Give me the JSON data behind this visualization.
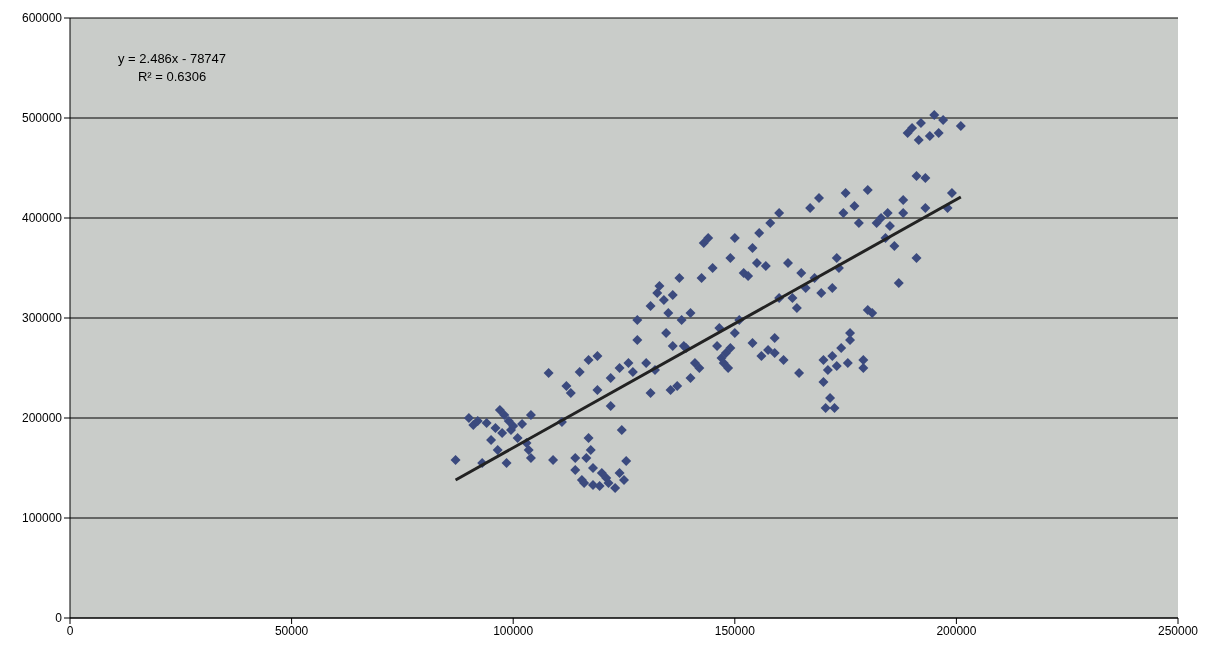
{
  "chart_data": {
    "type": "scatter",
    "grid": "y",
    "xlim": [
      0,
      250000
    ],
    "xticks": [
      0,
      50000,
      100000,
      150000,
      200000,
      250000
    ],
    "ylim": [
      0,
      600000
    ],
    "yticks": [
      0,
      100000,
      200000,
      300000,
      400000,
      500000,
      600000
    ],
    "annotations": [
      "y = 2.486x - 78747",
      "R² = 0.6306"
    ],
    "series": [
      {
        "color": "#3b4a7e",
        "marker": "diamond",
        "x": [
          87000,
          90000,
          91000,
          92000,
          93000,
          94000,
          95000,
          96000,
          96500,
          97000,
          97500,
          98000,
          98500,
          99000,
          99500,
          100000,
          101000,
          102000,
          103000,
          104000,
          104000,
          103500,
          108000,
          109000,
          111000,
          112000,
          113000,
          114000,
          114000,
          115000,
          115500,
          116000,
          116500,
          117000,
          117000,
          117500,
          118000,
          118000,
          119000,
          119000,
          119500,
          120000,
          121000,
          121500,
          122000,
          122000,
          123000,
          124000,
          124000,
          124500,
          125000,
          125500,
          126000,
          127000,
          128000,
          128000,
          130000,
          131000,
          131000,
          132000,
          132500,
          133000,
          134000,
          134500,
          135000,
          135500,
          136000,
          136000,
          137000,
          137500,
          138000,
          138500,
          139000,
          140000,
          140000,
          141000,
          142000,
          142500,
          143000,
          144000,
          145000,
          146000,
          146500,
          147000,
          147500,
          148000,
          148500,
          149000,
          149000,
          150000,
          150000,
          151000,
          152000,
          153000,
          154000,
          154000,
          155000,
          155500,
          156000,
          157000,
          157500,
          158000,
          159000,
          159000,
          160000,
          160000,
          161000,
          162000,
          163000,
          164000,
          164500,
          165000,
          166000,
          167000,
          168000,
          169000,
          169500,
          170000,
          170000,
          170500,
          171000,
          171500,
          172000,
          172000,
          172500,
          173000,
          173000,
          173500,
          174000,
          174500,
          175000,
          175500,
          176000,
          176000,
          177000,
          178000,
          179000,
          179000,
          180000,
          180000,
          181000,
          182000,
          183000,
          184000,
          184500,
          185000,
          186000,
          187000,
          188000,
          188000,
          189000,
          190000,
          191000,
          191000,
          191500,
          192000,
          193000,
          193000,
          194000,
          195000,
          196000,
          197000,
          198000,
          199000,
          201000
        ],
        "values": [
          158000,
          200000,
          193000,
          197000,
          155000,
          195000,
          178000,
          190000,
          168000,
          208000,
          185000,
          203000,
          155000,
          197000,
          188000,
          192000,
          180000,
          194000,
          175000,
          203000,
          160000,
          168000,
          245000,
          158000,
          196000,
          232000,
          225000,
          160000,
          148000,
          246000,
          138000,
          135000,
          160000,
          258000,
          180000,
          168000,
          133000,
          150000,
          262000,
          228000,
          132000,
          145000,
          140000,
          135000,
          212000,
          240000,
          130000,
          145000,
          250000,
          188000,
          138000,
          157000,
          255000,
          246000,
          278000,
          298000,
          255000,
          225000,
          312000,
          248000,
          325000,
          332000,
          318000,
          285000,
          305000,
          228000,
          323000,
          272000,
          232000,
          340000,
          298000,
          272000,
          270000,
          305000,
          240000,
          255000,
          250000,
          340000,
          375000,
          380000,
          350000,
          272000,
          290000,
          260000,
          255000,
          265000,
          250000,
          270000,
          360000,
          285000,
          380000,
          298000,
          345000,
          342000,
          370000,
          275000,
          355000,
          385000,
          262000,
          352000,
          268000,
          395000,
          265000,
          280000,
          320000,
          405000,
          258000,
          355000,
          320000,
          310000,
          245000,
          345000,
          330000,
          410000,
          340000,
          420000,
          325000,
          258000,
          236000,
          210000,
          248000,
          220000,
          262000,
          330000,
          210000,
          252000,
          360000,
          350000,
          270000,
          405000,
          425000,
          255000,
          285000,
          278000,
          412000,
          395000,
          250000,
          258000,
          428000,
          308000,
          305000,
          395000,
          400000,
          380000,
          405000,
          392000,
          372000,
          335000,
          405000,
          418000,
          485000,
          490000,
          360000,
          442000,
          478000,
          495000,
          410000,
          440000,
          482000,
          503000,
          485000,
          498000,
          410000,
          425000,
          492000
        ]
      },
      {
        "type": "line",
        "color": "#222222",
        "x": [
          87000,
          201000
        ],
        "values": [
          138000,
          421000
        ]
      }
    ]
  }
}
